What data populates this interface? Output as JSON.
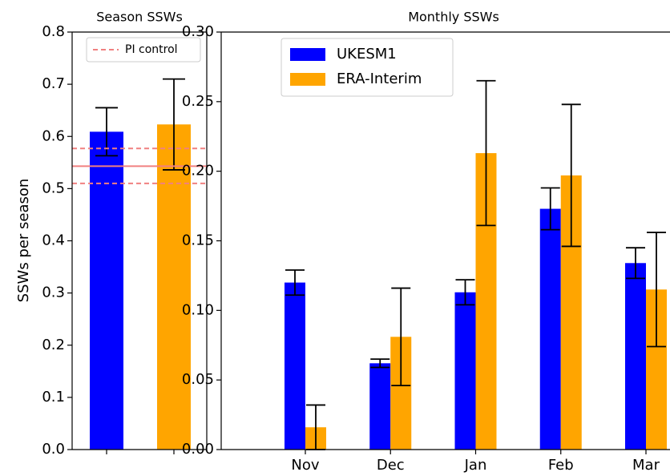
{
  "chart_data": [
    {
      "type": "bar",
      "title": "Season SSWs",
      "y_label": "SSWs per season",
      "categories": [
        null,
        null
      ],
      "values": [
        0.609,
        0.623
      ],
      "errors": [
        0.046,
        0.087
      ],
      "colors": [
        "#0000ff",
        "#ffa500"
      ],
      "reference_lines": [
        {
          "name": "PI control",
          "value": 0.543,
          "lower": 0.51,
          "upper": 0.577,
          "color": "#f08080"
        }
      ],
      "ylim": [
        0,
        0.8
      ],
      "yticks": [
        {
          "value": 0,
          "label": "0.0"
        },
        0.1,
        0.2,
        0.3,
        0.4,
        0.5,
        0.6,
        0.7,
        0.8
      ],
      "legend": "upper right"
    },
    {
      "type": "bar",
      "title": "Monthly SSWs",
      "categories": [
        "Nov",
        "Dec",
        "Jan",
        "Feb",
        "Mar"
      ],
      "series": [
        {
          "name": "UKESM1",
          "color": "#0000ff",
          "values": [
            0.12,
            0.062,
            0.113,
            0.173,
            0.134
          ],
          "errors": [
            0.009,
            0.003,
            0.009,
            0.015,
            0.011
          ]
        },
        {
          "name": "ERA-Interim",
          "color": "#ffa500",
          "values": [
            0.016,
            0.081,
            0.213,
            0.197,
            0.115
          ],
          "errors": [
            0.016,
            0.035,
            0.052,
            0.051,
            0.041
          ]
        }
      ],
      "ylim": [
        0,
        0.3
      ],
      "yticks": [
        {
          "value": 0,
          "label": "0.00"
        },
        0.05,
        {
          "value": 0.1,
          "label": "0.10"
        },
        0.15,
        {
          "value": 0.2,
          "label": "0.20"
        },
        0.25,
        {
          "value": 0.3,
          "label": "0.30"
        }
      ],
      "legend": "upper left"
    }
  ]
}
